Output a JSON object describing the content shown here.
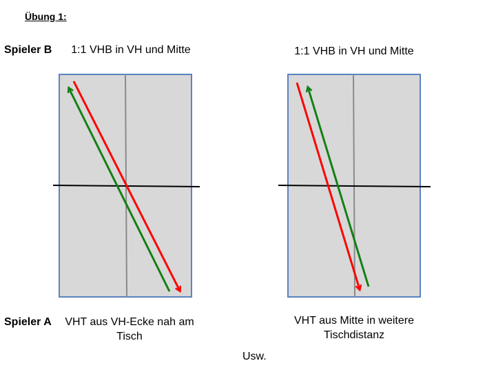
{
  "title": "Übung 1:",
  "players": {
    "top": "Spieler B",
    "bottom": "Spieler A"
  },
  "tables": [
    {
      "top_label": "1:1 VHB in VH und Mitte",
      "bottom_label": "VHT aus VH-Ecke nah am Tisch"
    },
    {
      "top_label": "1:1 VHB in VH und Mitte",
      "bottom_label": "VHT aus Mitte in weitere Tischdistanz"
    }
  ],
  "footer": "Usw.",
  "colors": {
    "table_fill": "#d8d8d8",
    "table_border": "#5b82bf",
    "center_line": "#8a8a8a",
    "net": "#000000",
    "arrow_red": "#ff0000",
    "arrow_green": "#138013"
  }
}
